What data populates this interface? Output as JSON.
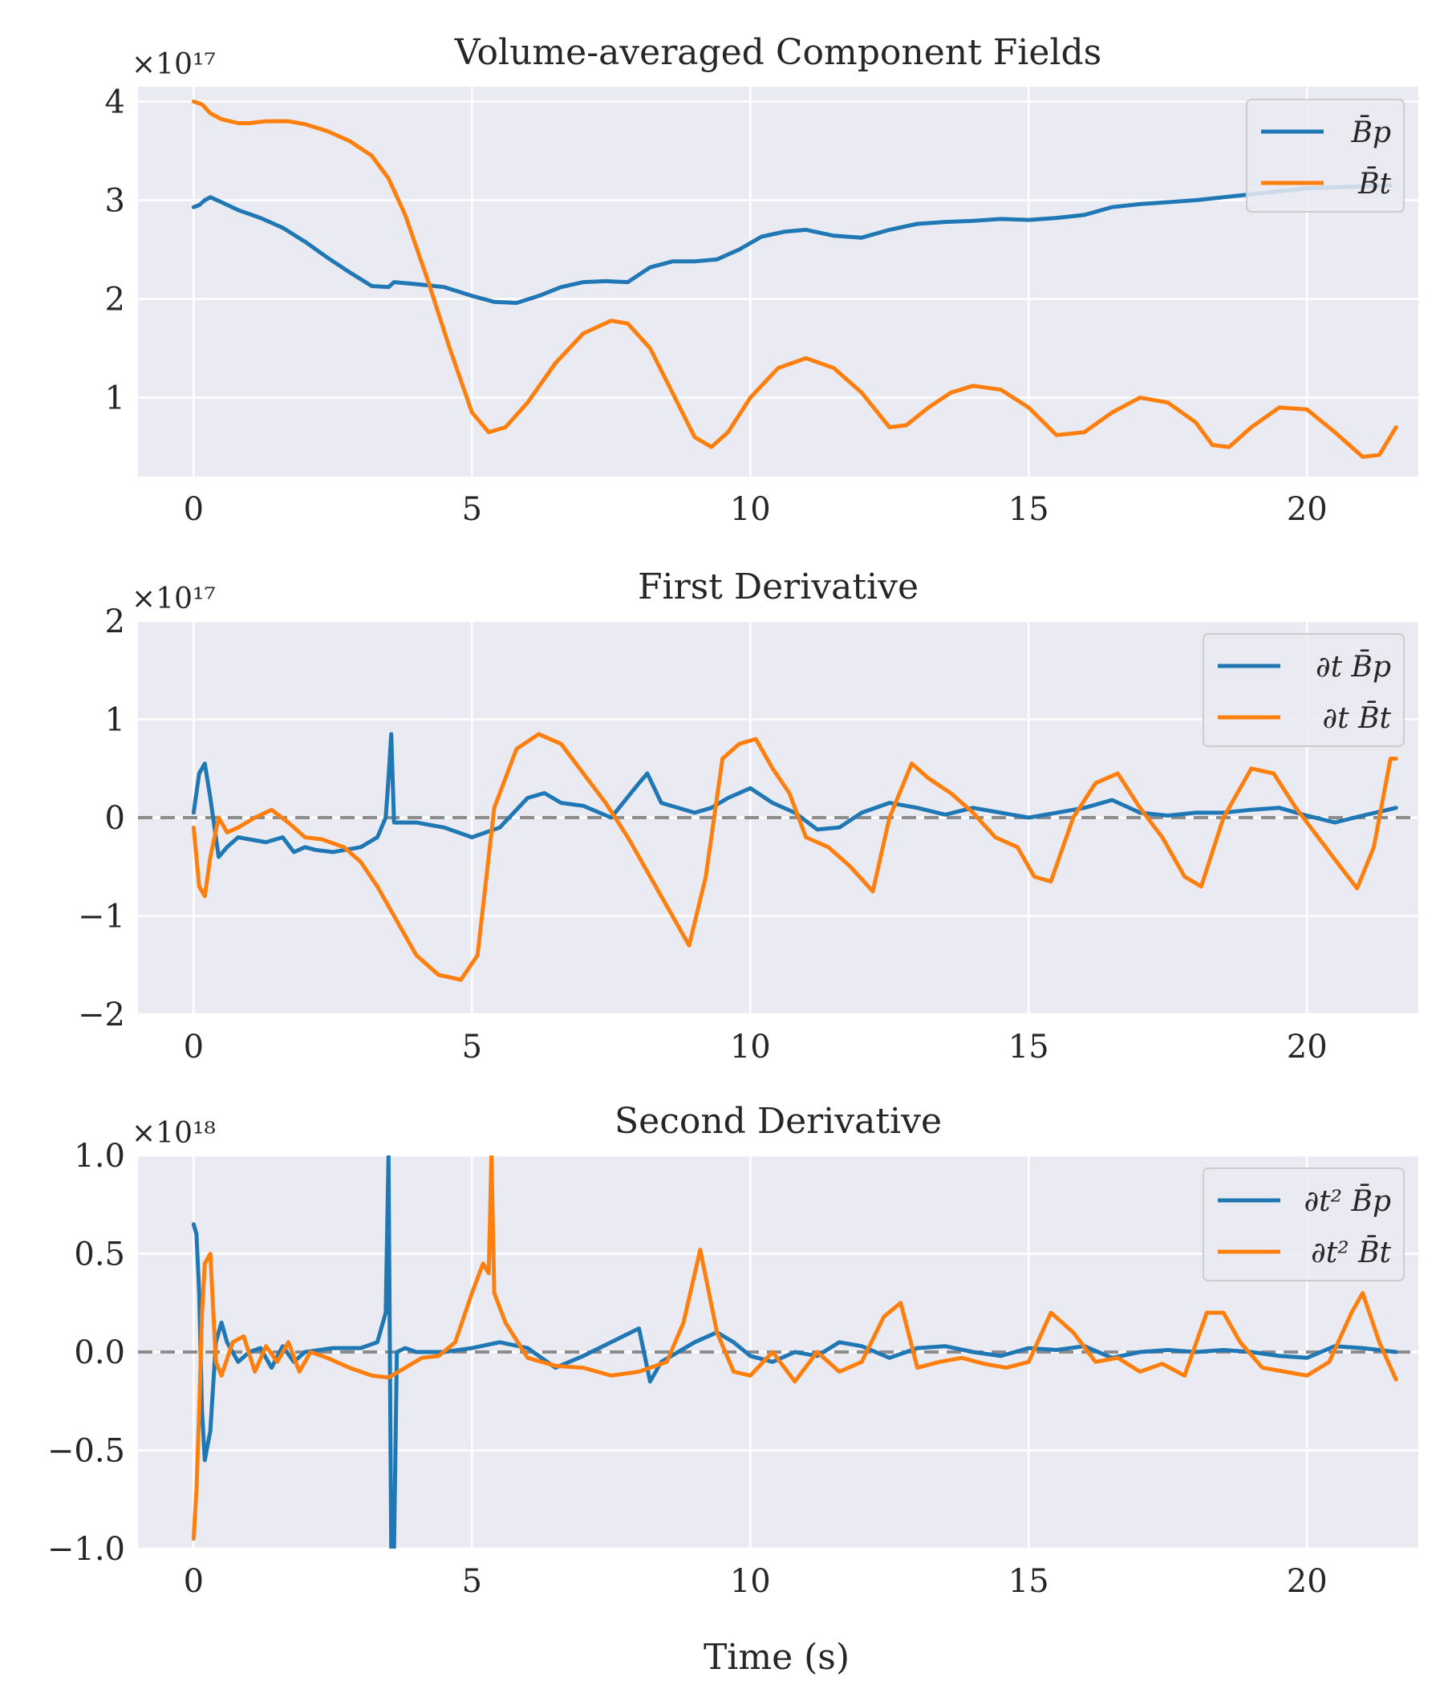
{
  "figure": {
    "xlabel": "Time (s)"
  },
  "chart_data": [
    {
      "type": "line",
      "title": "Volume-averaged Component Fields",
      "multiplier": "×10¹⁷",
      "xlabel": "",
      "ylabel": "",
      "xlim": [
        -1,
        22
      ],
      "ylim": [
        0.2,
        4.15
      ],
      "xticks": [
        0,
        5,
        10,
        15,
        20
      ],
      "yticks": [
        1,
        2,
        3,
        4
      ],
      "ytick_labels": [
        "1",
        "2",
        "3",
        "4"
      ],
      "grid": true,
      "legend": "top-right",
      "zero_line": false,
      "series": [
        {
          "name": "B̄p",
          "color": "#1f77b4",
          "x": [
            0,
            0.1,
            0.2,
            0.3,
            0.5,
            0.8,
            1.2,
            1.6,
            2.0,
            2.4,
            2.8,
            3.2,
            3.5,
            3.6,
            4.0,
            4.5,
            5.0,
            5.4,
            5.8,
            6.2,
            6.6,
            7.0,
            7.4,
            7.8,
            8.2,
            8.6,
            9.0,
            9.4,
            9.8,
            10.2,
            10.6,
            11.0,
            11.5,
            12.0,
            12.5,
            13.0,
            13.5,
            14.0,
            14.5,
            15.0,
            15.5,
            16.0,
            16.5,
            17.0,
            17.5,
            18.0,
            18.5,
            19.0,
            19.5,
            20.0,
            20.5,
            21.0,
            21.5
          ],
          "y": [
            2.93,
            2.95,
            3.0,
            3.03,
            2.98,
            2.9,
            2.82,
            2.72,
            2.58,
            2.42,
            2.27,
            2.13,
            2.12,
            2.17,
            2.15,
            2.12,
            2.03,
            1.97,
            1.96,
            2.03,
            2.12,
            2.17,
            2.18,
            2.17,
            2.32,
            2.38,
            2.38,
            2.4,
            2.5,
            2.63,
            2.68,
            2.7,
            2.64,
            2.62,
            2.7,
            2.76,
            2.78,
            2.79,
            2.81,
            2.8,
            2.82,
            2.85,
            2.93,
            2.96,
            2.98,
            3.0,
            3.03,
            3.06,
            3.09,
            3.12,
            3.13,
            3.14,
            3.15
          ]
        },
        {
          "name": "B̄t",
          "color": "#ff7f0e",
          "x": [
            0,
            0.15,
            0.3,
            0.5,
            0.8,
            1.0,
            1.3,
            1.7,
            2.0,
            2.4,
            2.8,
            3.2,
            3.5,
            3.8,
            4.2,
            4.6,
            5.0,
            5.3,
            5.6,
            6.0,
            6.5,
            7.0,
            7.5,
            7.8,
            8.2,
            8.6,
            9.0,
            9.3,
            9.6,
            10.0,
            10.5,
            11.0,
            11.5,
            12.0,
            12.5,
            12.8,
            13.2,
            13.6,
            14.0,
            14.5,
            15.0,
            15.5,
            16.0,
            16.5,
            17.0,
            17.5,
            18.0,
            18.3,
            18.6,
            19.0,
            19.5,
            20.0,
            20.5,
            21.0,
            21.3,
            21.6
          ],
          "y": [
            4.0,
            3.97,
            3.88,
            3.82,
            3.78,
            3.78,
            3.8,
            3.8,
            3.77,
            3.7,
            3.6,
            3.45,
            3.22,
            2.85,
            2.2,
            1.5,
            0.85,
            0.65,
            0.7,
            0.95,
            1.35,
            1.65,
            1.78,
            1.75,
            1.5,
            1.05,
            0.6,
            0.5,
            0.65,
            1.0,
            1.3,
            1.4,
            1.3,
            1.05,
            0.7,
            0.72,
            0.9,
            1.05,
            1.12,
            1.08,
            0.9,
            0.62,
            0.65,
            0.85,
            1.0,
            0.95,
            0.75,
            0.52,
            0.5,
            0.7,
            0.9,
            0.88,
            0.65,
            0.4,
            0.42,
            0.7
          ]
        }
      ]
    },
    {
      "type": "line",
      "title": "First Derivative",
      "multiplier": "×10¹⁷",
      "xlabel": "",
      "ylabel": "",
      "xlim": [
        -1,
        22
      ],
      "ylim": [
        -2,
        2
      ],
      "xticks": [
        0,
        5,
        10,
        15,
        20
      ],
      "yticks": [
        -2,
        -1,
        0,
        1,
        2
      ],
      "ytick_labels": [
        "−2",
        "−1",
        "0",
        "1",
        "2"
      ],
      "grid": true,
      "legend": "top-right",
      "zero_line": true,
      "series": [
        {
          "name": "∂t B̄p",
          "color": "#1f77b4",
          "x": [
            0,
            0.1,
            0.2,
            0.3,
            0.45,
            0.6,
            0.8,
            1.0,
            1.3,
            1.6,
            1.8,
            2.0,
            2.2,
            2.5,
            3.0,
            3.3,
            3.45,
            3.5,
            3.55,
            3.6,
            3.8,
            4.0,
            4.5,
            5.0,
            5.5,
            6.0,
            6.3,
            6.6,
            7.0,
            7.5,
            8.0,
            8.15,
            8.4,
            9.0,
            9.3,
            9.6,
            10.0,
            10.4,
            10.8,
            11.2,
            11.6,
            12.0,
            12.5,
            13.0,
            13.5,
            14.0,
            14.5,
            15.0,
            15.5,
            16.0,
            16.5,
            17.0,
            17.5,
            18.0,
            18.5,
            19.0,
            19.5,
            20.0,
            20.5,
            21.0,
            21.6
          ],
          "y": [
            0.05,
            0.45,
            0.55,
            0.2,
            -0.4,
            -0.3,
            -0.2,
            -0.22,
            -0.25,
            -0.2,
            -0.35,
            -0.3,
            -0.33,
            -0.35,
            -0.3,
            -0.2,
            0.0,
            0.4,
            0.85,
            -0.05,
            -0.05,
            -0.05,
            -0.1,
            -0.2,
            -0.1,
            0.2,
            0.25,
            0.15,
            0.12,
            0.0,
            0.35,
            0.45,
            0.15,
            0.05,
            0.1,
            0.2,
            0.3,
            0.15,
            0.05,
            -0.12,
            -0.1,
            0.05,
            0.15,
            0.1,
            0.03,
            0.1,
            0.05,
            0.0,
            0.05,
            0.1,
            0.18,
            0.05,
            0.02,
            0.05,
            0.05,
            0.08,
            0.1,
            0.02,
            -0.05,
            0.02,
            0.1
          ]
        },
        {
          "name": "∂t B̄t",
          "color": "#ff7f0e",
          "x": [
            0,
            0.1,
            0.2,
            0.3,
            0.45,
            0.6,
            0.8,
            1.1,
            1.4,
            1.7,
            2.0,
            2.3,
            2.7,
            3.0,
            3.3,
            3.7,
            4.0,
            4.4,
            4.8,
            5.1,
            5.4,
            5.8,
            6.2,
            6.6,
            7.0,
            7.4,
            7.8,
            8.2,
            8.6,
            8.9,
            9.2,
            9.5,
            9.8,
            10.1,
            10.4,
            10.7,
            11.0,
            11.4,
            11.8,
            12.2,
            12.5,
            12.9,
            13.2,
            13.6,
            14.0,
            14.4,
            14.8,
            15.1,
            15.4,
            15.8,
            16.2,
            16.6,
            17.0,
            17.4,
            17.8,
            18.1,
            18.5,
            19.0,
            19.4,
            19.8,
            20.2,
            20.6,
            20.9,
            21.2,
            21.5,
            21.6
          ],
          "y": [
            -0.1,
            -0.7,
            -0.8,
            -0.4,
            0.0,
            -0.15,
            -0.1,
            0.0,
            0.08,
            -0.05,
            -0.2,
            -0.22,
            -0.3,
            -0.45,
            -0.7,
            -1.1,
            -1.4,
            -1.6,
            -1.65,
            -1.4,
            0.1,
            0.7,
            0.85,
            0.75,
            0.45,
            0.15,
            -0.2,
            -0.6,
            -1.0,
            -1.3,
            -0.6,
            0.6,
            0.75,
            0.8,
            0.5,
            0.25,
            -0.2,
            -0.3,
            -0.5,
            -0.75,
            0.0,
            0.55,
            0.4,
            0.25,
            0.05,
            -0.2,
            -0.3,
            -0.6,
            -0.65,
            0.0,
            0.35,
            0.45,
            0.1,
            -0.2,
            -0.6,
            -0.7,
            0.0,
            0.5,
            0.45,
            0.1,
            -0.2,
            -0.5,
            -0.72,
            -0.3,
            0.6,
            0.6
          ]
        }
      ]
    },
    {
      "type": "line",
      "title": "Second Derivative",
      "multiplier": "×10¹⁸",
      "xlabel": "Time (s)",
      "ylabel": "",
      "xlim": [
        -1,
        22
      ],
      "ylim": [
        -1.0,
        1.0
      ],
      "xticks": [
        0,
        5,
        10,
        15,
        20
      ],
      "yticks": [
        -1.0,
        -0.5,
        0.0,
        0.5,
        1.0
      ],
      "ytick_labels": [
        "−1.0",
        "−0.5",
        "0.0",
        "0.5",
        "1.0"
      ],
      "grid": true,
      "legend": "top-right",
      "zero_line": true,
      "series": [
        {
          "name": "∂t² B̄p",
          "color": "#1f77b4",
          "x": [
            0,
            0.05,
            0.1,
            0.15,
            0.2,
            0.3,
            0.4,
            0.5,
            0.6,
            0.8,
            1.0,
            1.2,
            1.4,
            1.6,
            1.8,
            2.0,
            2.5,
            3.0,
            3.3,
            3.45,
            3.5,
            3.55,
            3.6,
            3.65,
            3.8,
            4.0,
            4.5,
            5.0,
            5.5,
            6.0,
            6.5,
            7.0,
            7.5,
            8.0,
            8.2,
            8.4,
            9.0,
            9.4,
            9.7,
            10.0,
            10.4,
            10.8,
            11.2,
            11.6,
            12.0,
            12.5,
            13.0,
            13.5,
            14.0,
            14.5,
            15.0,
            15.5,
            16.0,
            16.5,
            17.0,
            17.5,
            18.0,
            18.5,
            19.0,
            19.5,
            20.0,
            20.5,
            21.0,
            21.6
          ],
          "y": [
            0.65,
            0.6,
            0.3,
            -0.3,
            -0.55,
            -0.4,
            0.05,
            0.15,
            0.05,
            -0.05,
            0.0,
            0.02,
            -0.08,
            0.03,
            -0.05,
            0.0,
            0.02,
            0.02,
            0.05,
            0.2,
            1.0,
            -1.0,
            -1.0,
            0.0,
            0.02,
            0.0,
            0.0,
            0.02,
            0.05,
            0.02,
            -0.08,
            -0.02,
            0.05,
            0.12,
            -0.15,
            -0.05,
            0.05,
            0.1,
            0.05,
            -0.02,
            -0.05,
            0.0,
            -0.02,
            0.05,
            0.03,
            -0.03,
            0.02,
            0.03,
            0.0,
            -0.02,
            0.02,
            0.01,
            0.03,
            -0.03,
            0.0,
            0.01,
            0.0,
            0.01,
            0.0,
            -0.02,
            -0.03,
            0.03,
            0.02,
            0.0
          ]
        },
        {
          "name": "∂t² B̄t",
          "color": "#ff7f0e",
          "x": [
            0,
            0.05,
            0.1,
            0.15,
            0.2,
            0.3,
            0.4,
            0.5,
            0.7,
            0.9,
            1.1,
            1.3,
            1.5,
            1.7,
            1.9,
            2.1,
            2.4,
            2.8,
            3.2,
            3.5,
            3.8,
            4.1,
            4.4,
            4.7,
            5.0,
            5.2,
            5.3,
            5.35,
            5.4,
            5.6,
            6.0,
            6.5,
            7.0,
            7.5,
            8.0,
            8.5,
            8.8,
            9.1,
            9.4,
            9.7,
            10.0,
            10.4,
            10.8,
            11.2,
            11.6,
            12.0,
            12.4,
            12.7,
            13.0,
            13.4,
            13.8,
            14.2,
            14.6,
            15.0,
            15.4,
            15.8,
            16.2,
            16.6,
            17.0,
            17.4,
            17.8,
            18.2,
            18.5,
            18.8,
            19.2,
            19.6,
            20.0,
            20.4,
            20.8,
            21.0,
            21.3,
            21.6
          ],
          "y": [
            -0.95,
            -0.7,
            -0.3,
            0.2,
            0.45,
            0.5,
            -0.05,
            -0.12,
            0.05,
            0.08,
            -0.1,
            0.03,
            -0.05,
            0.05,
            -0.1,
            0.0,
            -0.03,
            -0.08,
            -0.12,
            -0.13,
            -0.08,
            -0.03,
            -0.02,
            0.05,
            0.3,
            0.45,
            0.4,
            1.0,
            0.3,
            0.15,
            -0.03,
            -0.07,
            -0.08,
            -0.12,
            -0.1,
            -0.05,
            0.15,
            0.52,
            0.1,
            -0.1,
            -0.12,
            0.0,
            -0.15,
            0.0,
            -0.1,
            -0.05,
            0.18,
            0.25,
            -0.08,
            -0.05,
            -0.03,
            -0.06,
            -0.08,
            -0.05,
            0.2,
            0.1,
            -0.05,
            -0.03,
            -0.1,
            -0.06,
            -0.12,
            0.2,
            0.2,
            0.05,
            -0.08,
            -0.1,
            -0.12,
            -0.05,
            0.2,
            0.3,
            0.05,
            -0.14
          ]
        }
      ]
    }
  ]
}
